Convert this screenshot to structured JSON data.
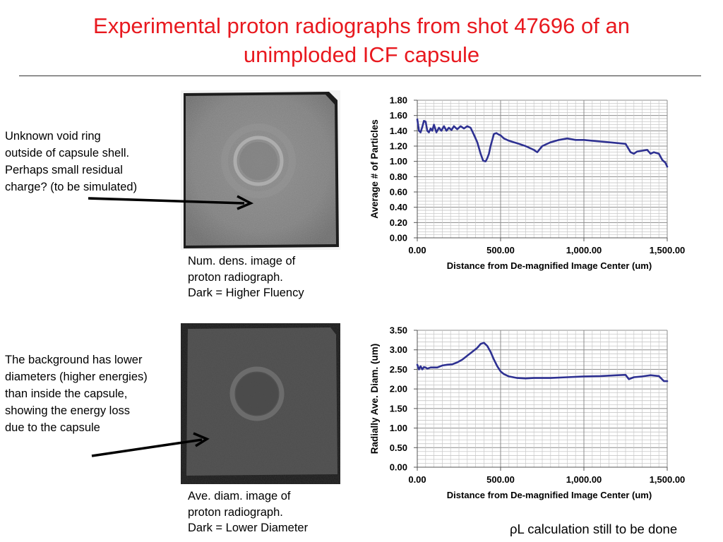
{
  "slide": {
    "title_line1": "Experimental proton radiographs from shot 47696 of an",
    "title_line2": "unimploded ICF capsule",
    "footer": "ρL calculation still to be done"
  },
  "annotations": {
    "top": [
      "Unknown void ring",
      "outside of capsule shell.",
      "Perhaps small residual",
      "charge?  (to be simulated)"
    ],
    "bottom": [
      "The background has lower",
      "diameters (higher energies)",
      "than inside the capsule,",
      "showing  the energy loss",
      "due to the capsule"
    ]
  },
  "captions": {
    "top": [
      "Num. dens. image of",
      "proton radiograph.",
      "Dark = Higher Fluency"
    ],
    "bottom": [
      "Ave. diam. image of",
      "proton radiograph.",
      "Dark = Lower Diameter"
    ]
  },
  "chart_data": [
    {
      "type": "line",
      "xlabel": "Distance from De-magnified Image Center (um)",
      "ylabel": "Average # of Particles",
      "xlim": [
        0,
        1500
      ],
      "ylim": [
        0,
        1.8
      ],
      "xticks": [
        "0.00",
        "500.00",
        "1,000.00",
        "1,500.00"
      ],
      "yticks": [
        "0.00",
        "0.20",
        "0.40",
        "0.60",
        "0.80",
        "1.00",
        "1.20",
        "1.40",
        "1.60",
        "1.80"
      ],
      "grid": true,
      "line_color": "#2e3192",
      "series": [
        {
          "x": [
            0,
            10,
            20,
            30,
            40,
            50,
            60,
            70,
            80,
            90,
            100,
            115,
            130,
            145,
            160,
            175,
            190,
            205,
            220,
            240,
            260,
            280,
            300,
            320,
            340,
            360,
            380,
            395,
            410,
            420,
            430,
            440,
            450,
            460,
            475,
            490,
            500,
            520,
            550,
            580,
            610,
            650,
            700,
            720,
            750,
            800,
            850,
            900,
            950,
            1000,
            1050,
            1100,
            1150,
            1200,
            1250,
            1280,
            1300,
            1320,
            1350,
            1380,
            1400,
            1420,
            1450,
            1470,
            1490,
            1500
          ],
          "values": [
            1.55,
            1.4,
            1.38,
            1.45,
            1.53,
            1.52,
            1.4,
            1.38,
            1.43,
            1.4,
            1.48,
            1.38,
            1.44,
            1.4,
            1.46,
            1.4,
            1.44,
            1.41,
            1.46,
            1.42,
            1.46,
            1.43,
            1.46,
            1.44,
            1.35,
            1.25,
            1.1,
            1.01,
            1.0,
            1.04,
            1.1,
            1.2,
            1.28,
            1.36,
            1.37,
            1.35,
            1.34,
            1.3,
            1.27,
            1.25,
            1.23,
            1.2,
            1.15,
            1.12,
            1.2,
            1.25,
            1.28,
            1.3,
            1.28,
            1.28,
            1.27,
            1.26,
            1.25,
            1.24,
            1.23,
            1.12,
            1.1,
            1.13,
            1.14,
            1.15,
            1.1,
            1.12,
            1.1,
            1.02,
            0.98,
            0.93
          ]
        }
      ]
    },
    {
      "type": "line",
      "xlabel": "Distance from De-magnified Image Center (um)",
      "ylabel": "Radially Ave. Diam. (um)",
      "xlim": [
        0,
        1500
      ],
      "ylim": [
        0,
        3.5
      ],
      "xticks": [
        "0.00",
        "500.00",
        "1,000.00",
        "1,500.00"
      ],
      "yticks": [
        "0.00",
        "0.50",
        "1.00",
        "1.50",
        "2.00",
        "2.50",
        "3.00",
        "3.50"
      ],
      "grid": true,
      "line_color": "#2e3192",
      "series": [
        {
          "x": [
            0,
            10,
            20,
            30,
            40,
            50,
            60,
            80,
            100,
            120,
            150,
            180,
            210,
            240,
            270,
            300,
            330,
            360,
            380,
            400,
            420,
            440,
            460,
            480,
            500,
            520,
            550,
            600,
            650,
            700,
            800,
            900,
            1000,
            1100,
            1200,
            1250,
            1270,
            1300,
            1350,
            1400,
            1450,
            1480,
            1500
          ],
          "values": [
            2.62,
            2.5,
            2.58,
            2.5,
            2.56,
            2.55,
            2.52,
            2.55,
            2.55,
            2.55,
            2.6,
            2.62,
            2.63,
            2.68,
            2.75,
            2.85,
            2.95,
            3.05,
            3.15,
            3.18,
            3.1,
            2.95,
            2.75,
            2.58,
            2.45,
            2.38,
            2.32,
            2.28,
            2.27,
            2.28,
            2.28,
            2.3,
            2.32,
            2.33,
            2.35,
            2.36,
            2.25,
            2.3,
            2.32,
            2.35,
            2.33,
            2.2,
            2.2
          ]
        }
      ]
    }
  ]
}
